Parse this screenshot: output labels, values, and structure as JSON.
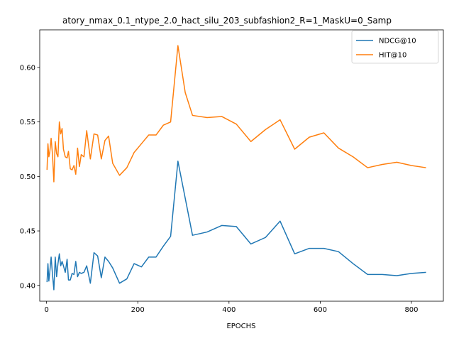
{
  "chart_data": {
    "type": "line",
    "title": "atory_nmax_0.1_ntype_2.0_hact_silu_203_subfashion2_R=1_MaskU=0_Samp",
    "xlabel": "EPOCHS",
    "ylabel": "",
    "xlim": [
      -15,
      870
    ],
    "ylim": [
      0.3855,
      0.6345
    ],
    "xticks": [
      0,
      200,
      400,
      600,
      800
    ],
    "yticks": [
      0.4,
      0.45,
      0.5,
      0.55,
      0.6
    ],
    "xtick_labels": [
      "0",
      "200",
      "400",
      "600",
      "800"
    ],
    "ytick_labels": [
      "0.40",
      "0.45",
      "0.50",
      "0.55",
      "0.60"
    ],
    "grid": false,
    "legend_position": "top-right",
    "colors": {
      "series1": "#1f77b4",
      "series2": "#ff7f0e"
    },
    "series": [
      {
        "name": "NDCG@10",
        "x": [
          1,
          3,
          5,
          7,
          10,
          13,
          16,
          19,
          22,
          25,
          28,
          31,
          34,
          37,
          41,
          45,
          48,
          52,
          56,
          60,
          64,
          68,
          72,
          76,
          82,
          88,
          96,
          104,
          112,
          120,
          128,
          136,
          145,
          160,
          176,
          192,
          208,
          224,
          240,
          256,
          272,
          288,
          304,
          320,
          352,
          384,
          416,
          448,
          480,
          512,
          544,
          576,
          608,
          640,
          672,
          704,
          736,
          768,
          800,
          832
        ],
        "y": [
          0.403,
          0.42,
          0.404,
          0.412,
          0.426,
          0.41,
          0.396,
          0.426,
          0.408,
          0.42,
          0.429,
          0.418,
          0.422,
          0.418,
          0.412,
          0.424,
          0.405,
          0.405,
          0.411,
          0.41,
          0.422,
          0.408,
          0.412,
          0.411,
          0.412,
          0.418,
          0.402,
          0.43,
          0.427,
          0.407,
          0.426,
          0.422,
          0.416,
          0.402,
          0.406,
          0.42,
          0.417,
          0.426,
          0.426,
          0.436,
          0.445,
          0.514,
          0.48,
          0.446,
          0.449,
          0.455,
          0.454,
          0.438,
          0.444,
          0.459,
          0.429,
          0.434,
          0.434,
          0.431,
          0.42,
          0.41,
          0.41,
          0.409,
          0.411,
          0.412
        ]
      },
      {
        "name": "HIT@10",
        "x": [
          1,
          3,
          5,
          7,
          10,
          13,
          16,
          19,
          22,
          25,
          28,
          31,
          34,
          37,
          41,
          45,
          48,
          52,
          56,
          60,
          64,
          68,
          72,
          76,
          82,
          88,
          96,
          104,
          112,
          120,
          128,
          136,
          145,
          160,
          176,
          192,
          208,
          224,
          240,
          256,
          272,
          288,
          304,
          320,
          352,
          384,
          416,
          448,
          480,
          512,
          544,
          576,
          608,
          640,
          672,
          704,
          736,
          768,
          800,
          832
        ],
        "y": [
          0.506,
          0.53,
          0.518,
          0.522,
          0.535,
          0.52,
          0.495,
          0.532,
          0.521,
          0.518,
          0.55,
          0.539,
          0.544,
          0.525,
          0.518,
          0.517,
          0.523,
          0.507,
          0.506,
          0.51,
          0.502,
          0.526,
          0.509,
          0.52,
          0.518,
          0.542,
          0.516,
          0.539,
          0.538,
          0.516,
          0.533,
          0.537,
          0.512,
          0.501,
          0.508,
          0.522,
          0.53,
          0.538,
          0.538,
          0.547,
          0.55,
          0.62,
          0.577,
          0.556,
          0.554,
          0.555,
          0.548,
          0.532,
          0.543,
          0.552,
          0.525,
          0.536,
          0.54,
          0.526,
          0.518,
          0.508,
          0.511,
          0.513,
          0.51,
          0.508
        ]
      }
    ]
  }
}
